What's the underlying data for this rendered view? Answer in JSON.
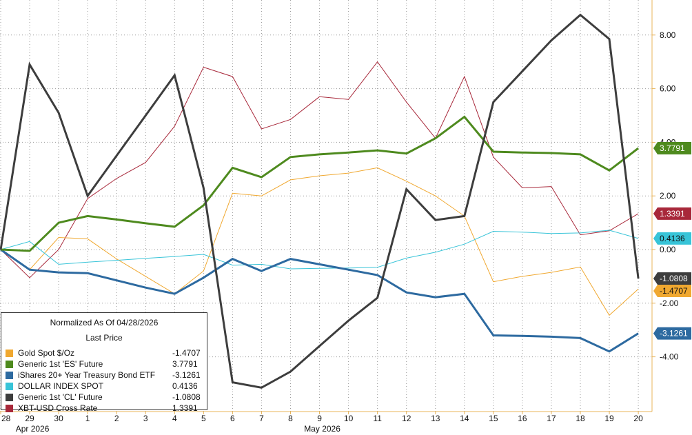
{
  "chart_data": {
    "type": "line",
    "title": "",
    "xlabel": "",
    "ylabel": "",
    "ylim": [
      -6.1,
      9.3
    ],
    "grid": true,
    "legend_position": "bottom-left",
    "legend_title": "Normalized As Of 04/28/2026",
    "legend_subtitle": "Last Price",
    "x": [
      "28",
      "29",
      "30",
      "1",
      "2",
      "3",
      "4",
      "5",
      "6",
      "7",
      "8",
      "9",
      "10",
      "11",
      "12",
      "13",
      "14",
      "15",
      "16",
      "17",
      "18",
      "19",
      "20"
    ],
    "month_labels": [
      {
        "label": "Apr 2026",
        "at_index": 1
      },
      {
        "label": "May 2026",
        "at_index": 11
      }
    ],
    "y_ticks": [
      {
        "value": 8,
        "label": "8.00"
      },
      {
        "value": 6,
        "label": "6.00"
      },
      {
        "value": 4,
        "label": "4.00"
      },
      {
        "value": 2,
        "label": "2.00"
      },
      {
        "value": 0,
        "label": "0.00"
      },
      {
        "value": -2,
        "label": "-2.00"
      },
      {
        "value": -4,
        "label": "-4.00"
      }
    ],
    "series": [
      {
        "name": "XBT-USD Cross Rate",
        "last_price": "1.3391",
        "tag": "1.3391",
        "color": "#a8283a",
        "width": 1,
        "values": [
          0,
          -1.05,
          0,
          1.9,
          2.65,
          3.25,
          4.6,
          6.8,
          6.45,
          4.5,
          4.85,
          5.7,
          5.6,
          7.0,
          5.5,
          4.15,
          6.45,
          3.45,
          2.3,
          2.35,
          0.55,
          0.7,
          1.3391
        ]
      },
      {
        "name": "Gold Spot $/Oz",
        "last_price": "-1.4707",
        "tag": "-1.4707",
        "color": "#f0a830",
        "width": 1,
        "values": [
          0,
          -0.75,
          0.45,
          0.4,
          -0.35,
          -1.0,
          -1.65,
          -0.8,
          2.1,
          2.0,
          2.6,
          2.75,
          2.85,
          3.05,
          2.55,
          2.0,
          1.25,
          -1.2,
          -1.0,
          -0.85,
          -0.65,
          -2.45,
          -1.4707
        ]
      },
      {
        "name": "DOLLAR INDEX SPOT",
        "last_price": "0.4136",
        "tag": "0.4136",
        "color": "#38c4d8",
        "width": 1,
        "values": [
          0,
          0.3,
          -0.55,
          -0.47,
          -0.4,
          -0.33,
          -0.26,
          -0.18,
          -0.58,
          -0.55,
          -0.72,
          -0.7,
          -0.69,
          -0.66,
          -0.32,
          -0.1,
          0.2,
          0.68,
          0.65,
          0.6,
          0.62,
          0.72,
          0.4136
        ]
      },
      {
        "name": "iShares 20+ Year Treasury Bond ETF",
        "last_price": "-3.1261",
        "tag": "-3.1261",
        "color": "#2d6aa0",
        "width": 3,
        "values": [
          0,
          -0.75,
          -0.85,
          -0.88,
          -1.15,
          -1.42,
          -1.65,
          -1.05,
          -0.35,
          -0.8,
          -0.35,
          -0.55,
          -0.75,
          -0.95,
          -1.6,
          -1.78,
          -1.65,
          -3.2,
          -3.22,
          -3.25,
          -3.3,
          -3.8,
          -3.1261
        ]
      },
      {
        "name": "Generic 1st 'ES' Future",
        "last_price": "3.7791",
        "tag": "3.7791",
        "color": "#4e8a1e",
        "width": 3,
        "values": [
          0,
          -0.05,
          1.0,
          1.25,
          1.12,
          0.98,
          0.85,
          1.65,
          3.05,
          2.7,
          3.45,
          3.55,
          3.62,
          3.7,
          3.58,
          4.15,
          4.95,
          3.65,
          3.62,
          3.6,
          3.55,
          2.95,
          3.7791
        ]
      },
      {
        "name": "Generic 1st 'CL' Future",
        "last_price": "-1.0808",
        "tag": "-1.0808",
        "color": "#3d3d3d",
        "width": 3,
        "values": [
          0,
          6.9,
          5.1,
          2.0,
          3.5,
          5.0,
          6.5,
          2.3,
          -4.95,
          -5.15,
          -4.55,
          -3.6,
          -2.65,
          -1.8,
          2.25,
          1.1,
          1.25,
          5.5,
          6.65,
          7.8,
          8.75,
          7.85,
          -1.0808
        ]
      }
    ]
  }
}
